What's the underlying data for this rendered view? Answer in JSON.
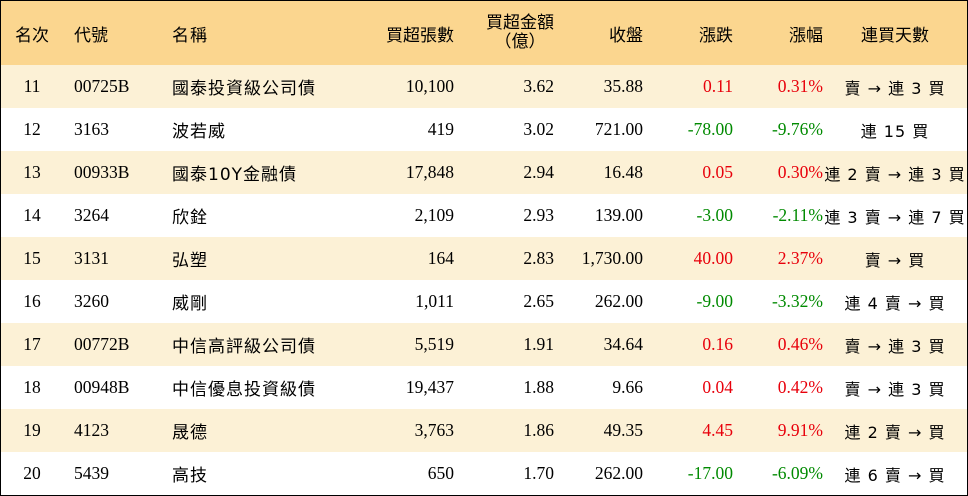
{
  "header": {
    "rank": "名次",
    "code": "代號",
    "name": "名稱",
    "net_buy_lots": "買超張數",
    "net_buy_amount_line1": "買超金額",
    "net_buy_amount_line2": "（億）",
    "close": "收盤",
    "change": "漲跌",
    "change_pct": "漲幅",
    "streak": "連買天數"
  },
  "colors": {
    "header_bg": "#fbd68f",
    "odd_row_bg": "#fcf1d6",
    "even_row_bg": "#ffffff",
    "up": "#e8000b",
    "down": "#008a00"
  },
  "rows": [
    {
      "rank": "11",
      "code": "00725B",
      "name": "國泰投資級公司債",
      "lots": "10,100",
      "amount": "3.62",
      "close": "35.88",
      "change": "0.11",
      "pct": "0.31%",
      "dir": "up",
      "streak": "賣 → 連 3 買"
    },
    {
      "rank": "12",
      "code": "3163",
      "name": "波若威",
      "lots": "419",
      "amount": "3.02",
      "close": "721.00",
      "change": "-78.00",
      "pct": "-9.76%",
      "dir": "down",
      "streak": "連 15 買"
    },
    {
      "rank": "13",
      "code": "00933B",
      "name": "國泰10Y金融債",
      "lots": "17,848",
      "amount": "2.94",
      "close": "16.48",
      "change": "0.05",
      "pct": "0.30%",
      "dir": "up",
      "streak": "連 2 賣 → 連 3 買"
    },
    {
      "rank": "14",
      "code": "3264",
      "name": "欣銓",
      "lots": "2,109",
      "amount": "2.93",
      "close": "139.00",
      "change": "-3.00",
      "pct": "-2.11%",
      "dir": "down",
      "streak": "連 3 賣 → 連 7 買"
    },
    {
      "rank": "15",
      "code": "3131",
      "name": "弘塑",
      "lots": "164",
      "amount": "2.83",
      "close": "1,730.00",
      "change": "40.00",
      "pct": "2.37%",
      "dir": "up",
      "streak": "賣 → 買"
    },
    {
      "rank": "16",
      "code": "3260",
      "name": "威剛",
      "lots": "1,011",
      "amount": "2.65",
      "close": "262.00",
      "change": "-9.00",
      "pct": "-3.32%",
      "dir": "down",
      "streak": "連 4 賣 → 買"
    },
    {
      "rank": "17",
      "code": "00772B",
      "name": "中信高評級公司債",
      "lots": "5,519",
      "amount": "1.91",
      "close": "34.64",
      "change": "0.16",
      "pct": "0.46%",
      "dir": "up",
      "streak": "賣 → 連 3 買"
    },
    {
      "rank": "18",
      "code": "00948B",
      "name": "中信優息投資級債",
      "lots": "19,437",
      "amount": "1.88",
      "close": "9.66",
      "change": "0.04",
      "pct": "0.42%",
      "dir": "up",
      "streak": "賣 → 連 3 買"
    },
    {
      "rank": "19",
      "code": "4123",
      "name": "晟德",
      "lots": "3,763",
      "amount": "1.86",
      "close": "49.35",
      "change": "4.45",
      "pct": "9.91%",
      "dir": "up",
      "streak": "連 2 賣 → 買"
    },
    {
      "rank": "20",
      "code": "5439",
      "name": "高技",
      "lots": "650",
      "amount": "1.70",
      "close": "262.00",
      "change": "-17.00",
      "pct": "-6.09%",
      "dir": "down",
      "streak": "連 6 賣 → 買"
    }
  ]
}
